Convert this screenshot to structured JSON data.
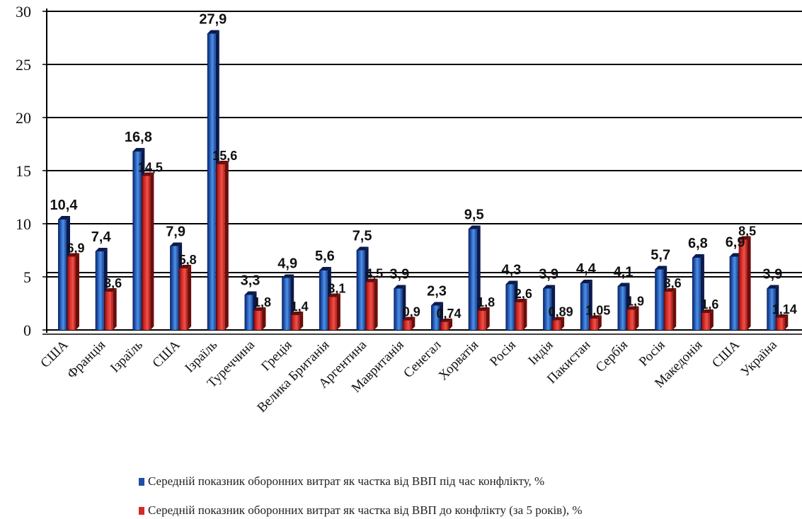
{
  "chart_data": {
    "type": "bar",
    "categories": [
      "США",
      "Франція",
      "Ізраїль",
      "США",
      "Ізраїль",
      "Туреччина",
      "Греція",
      "Велика Британія",
      "Аргентина",
      "Мавританія",
      "Сенегал",
      "Хорватія",
      "Росія",
      "Індія",
      "Пакистан",
      "Сербія",
      "Росія",
      "Македонія",
      "США",
      "Україна"
    ],
    "series": [
      {
        "name": "Середній показник оборонних витрат як частка від ВВП під час конфлікту, %",
        "values": [
          10.4,
          7.4,
          16.8,
          7.9,
          27.9,
          3.3,
          4.9,
          5.6,
          7.5,
          3.9,
          2.3,
          9.5,
          4.3,
          3.9,
          4.4,
          4.1,
          5.7,
          6.8,
          6.9,
          3.9
        ],
        "labels": [
          "10,4",
          "7,4",
          "16,8",
          "7,9",
          "27,9",
          "3,3",
          "4,9",
          "5,6",
          "7,5",
          "3,9",
          "2,3",
          "9,5",
          "4,3",
          "3,9",
          "4,4",
          "4,1",
          "5,7",
          "6,8",
          "6,9",
          "3,9"
        ],
        "color": "#1f4ea8"
      },
      {
        "name": "Середній показник оборонних витрат як частка від ВВП  до конфлікту (за 5 років), %",
        "values": [
          6.9,
          3.6,
          14.5,
          5.8,
          15.6,
          1.8,
          1.4,
          3.1,
          4.5,
          0.9,
          0.74,
          1.8,
          2.6,
          0.89,
          1.05,
          1.9,
          3.6,
          1.6,
          8.5,
          1.14
        ],
        "labels": [
          "6,9",
          "3,6",
          "14,5",
          "5,8",
          "15,6",
          "1,8",
          "1,4",
          "3,1",
          "4,5",
          "0,9",
          "0,74",
          "1,8",
          "2,6",
          "0,89",
          "1,05",
          "1,9",
          "3,6",
          "1,6",
          "8,5",
          "1,14"
        ],
        "color": "#d42a25"
      }
    ],
    "yticks": [
      "0",
      "5",
      "10",
      "15",
      "20",
      "25",
      "30"
    ],
    "ylim": [
      0,
      30
    ],
    "grid": true,
    "legend_position": "bottom"
  }
}
